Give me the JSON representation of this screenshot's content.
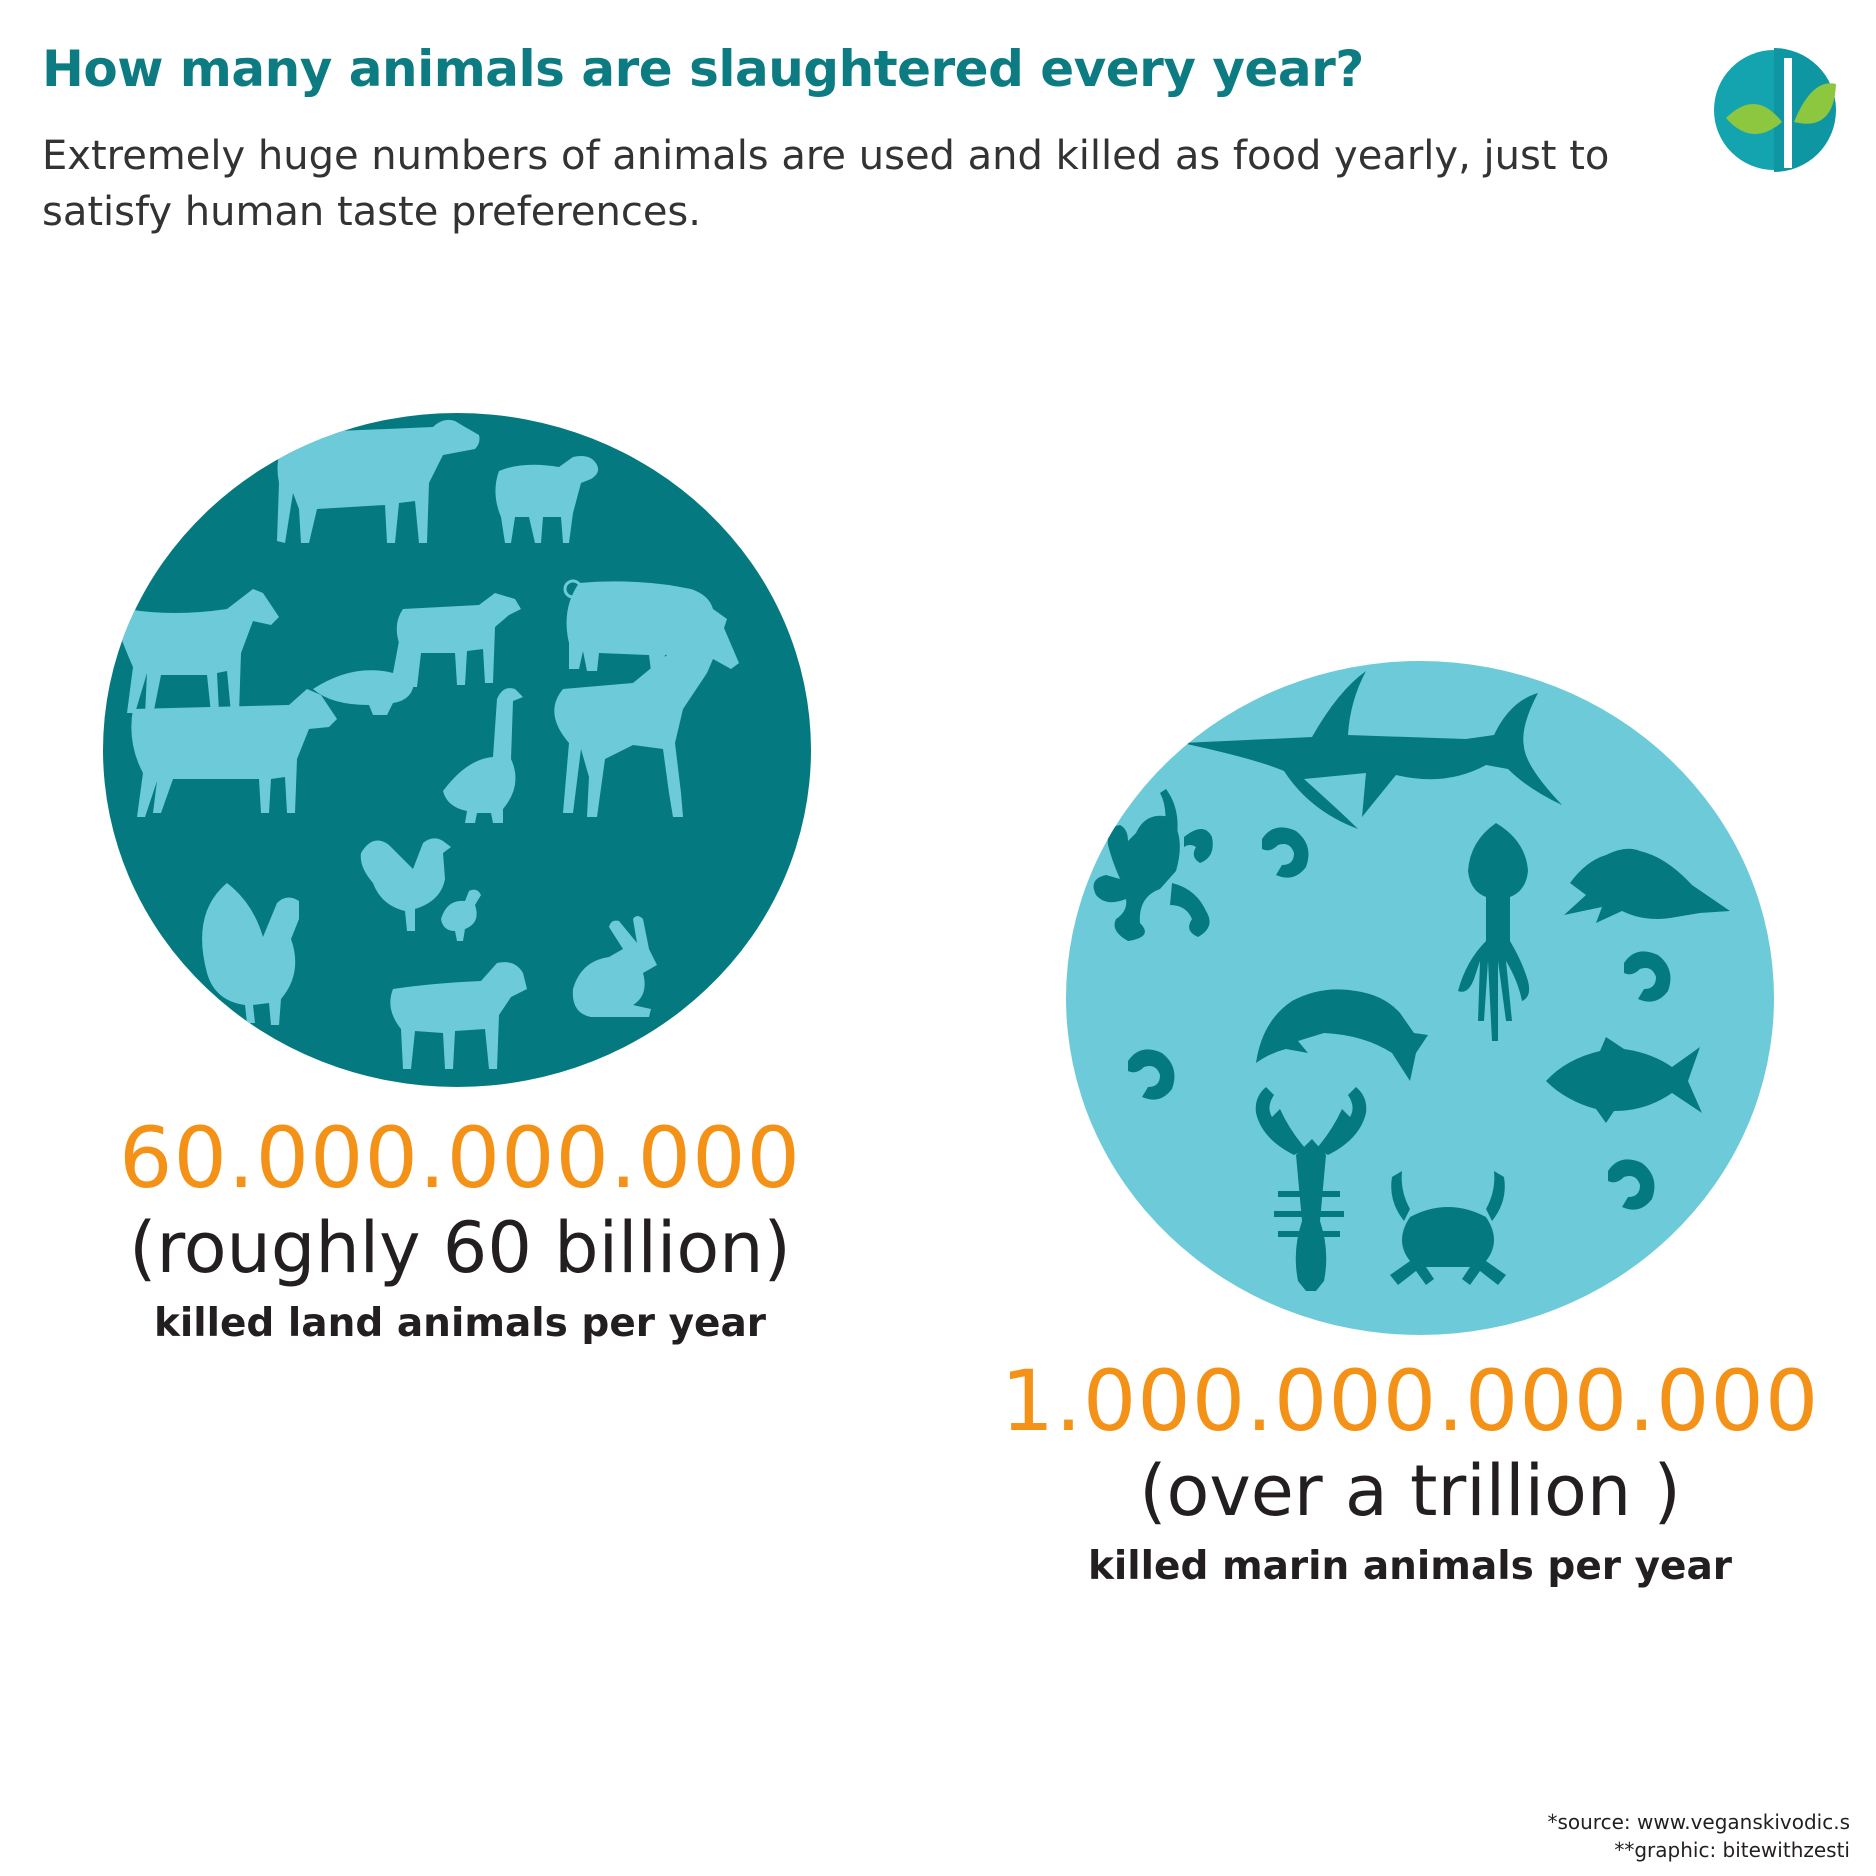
{
  "header": {
    "title": "How many animals are slaughtered every year?",
    "subtitle": "Extremely huge numbers of animals are used and killed as food yearly, just to satisfy human taste preferences."
  },
  "colors": {
    "title": "#0c7c82",
    "land_circle": "#047a80",
    "land_icons": "#6dcbd9",
    "sea_circle": "#6dcbd9",
    "sea_icons": "#047a80",
    "numbers": "#f39217",
    "logo_leaf": "#8dc63f"
  },
  "land": {
    "number": "60.000.000.000",
    "approx": "(roughly 60 billion)",
    "caption": "killed land animals per year",
    "icons": [
      "cow-icon",
      "sheep-icon",
      "goat-icon",
      "calf-icon",
      "pig-icon",
      "duck-icon",
      "horse-icon",
      "goose-icon",
      "dairy-cow-icon",
      "chicken-icon",
      "turkey-icon",
      "lamb-icon",
      "rabbit-icon"
    ]
  },
  "sea": {
    "number": "1.000.000.000.000",
    "approx": "(over a trillion )",
    "caption": "killed marin animals per year",
    "icons": [
      "swordfish-icon",
      "octopus-icon",
      "shrimp-icon",
      "squid-icon",
      "pike-icon",
      "salmon-icon",
      "tuna-icon",
      "lobster-icon",
      "crab-icon"
    ]
  },
  "footer": {
    "source": "*source: www.veganskivodic.s",
    "graphic": "**graphic: bitewithzesti"
  }
}
